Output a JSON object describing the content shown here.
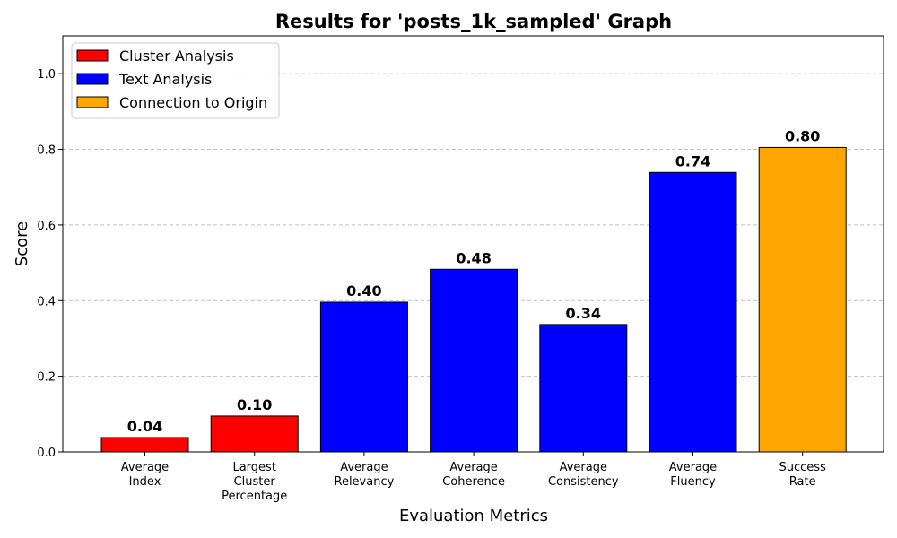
{
  "chart_data": {
    "type": "bar",
    "title": "Results for 'posts_1k_sampled' Graph",
    "xlabel": "Evaluation Metrics",
    "ylabel": "Score",
    "ylim": [
      0,
      1.1
    ],
    "yticks": [
      "0.0",
      "0.2",
      "0.4",
      "0.6",
      "0.8",
      "1.0"
    ],
    "grid": "horizontal dashed",
    "legend_position": "top-left",
    "categories": [
      [
        "Average",
        "Index"
      ],
      [
        "Largest",
        "Cluster",
        "Percentage"
      ],
      [
        "Average",
        "Relevancy"
      ],
      [
        "Average",
        "Coherence"
      ],
      [
        "Average",
        "Consistency"
      ],
      [
        "Average",
        "Fluency"
      ],
      [
        "Success",
        "Rate"
      ]
    ],
    "values": [
      0.038,
      0.095,
      0.396,
      0.483,
      0.337,
      0.739,
      0.805
    ],
    "data_labels": [
      "0.04",
      "0.10",
      "0.40",
      "0.48",
      "0.34",
      "0.74",
      "0.80"
    ],
    "bar_groups": [
      0,
      0,
      1,
      1,
      1,
      1,
      2
    ],
    "legend": [
      {
        "label": "Cluster Analysis",
        "color": "#ff0000"
      },
      {
        "label": "Text Analysis",
        "color": "#0000ff"
      },
      {
        "label": "Connection to Origin",
        "color": "#ffa500"
      }
    ]
  }
}
